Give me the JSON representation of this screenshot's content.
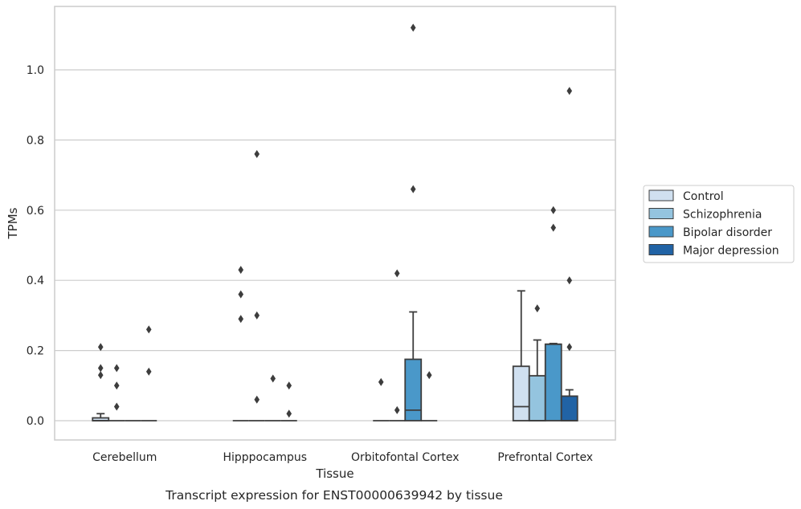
{
  "caption": "Transcript expression for ENST00000639942 by tissue",
  "colors": {
    "Control": "#d0e0f0",
    "Schizophrenia": "#94c4df",
    "Bipolar disorder": "#4a98c9",
    "Major depression": "#2163a5",
    "edge": "#3d3d3d",
    "grid": "#cccccc"
  },
  "chart_data": {
    "type": "box",
    "xlabel": "Tissue",
    "ylabel": "TPMs",
    "categories": [
      "Cerebellum",
      "Hipppocampus",
      "Orbitofontal Cortex",
      "Prefrontal Cortex"
    ],
    "yticks": [
      0.0,
      0.2,
      0.4,
      0.6,
      0.8,
      1.0
    ],
    "ytick_labels": [
      "0.0",
      "0.2",
      "0.4",
      "0.6",
      "0.8",
      "1.0"
    ],
    "ylim": [
      -0.055,
      1.18
    ],
    "grid": true,
    "legend": {
      "placement": "outside-right",
      "entries": [
        "Control",
        "Schizophrenia",
        "Bipolar disorder",
        "Major depression"
      ]
    },
    "series": [
      {
        "name": "Control",
        "boxes": [
          {
            "q1": 0,
            "median": 0,
            "q3": 0.008,
            "whisker_low": 0,
            "whisker_high": 0.02,
            "outliers": [
              0.13,
              0.15,
              0.21
            ]
          },
          {
            "q1": 0,
            "median": 0,
            "q3": 0,
            "whisker_low": 0,
            "whisker_high": 0,
            "outliers": [
              0.29,
              0.36,
              0.43
            ]
          },
          {
            "q1": 0,
            "median": 0,
            "q3": 0,
            "whisker_low": 0,
            "whisker_high": 0,
            "outliers": [
              0.11
            ]
          },
          {
            "q1": 0,
            "median": 0.04,
            "q3": 0.155,
            "whisker_low": 0,
            "whisker_high": 0.37,
            "outliers": []
          }
        ]
      },
      {
        "name": "Schizophrenia",
        "boxes": [
          {
            "q1": 0,
            "median": 0,
            "q3": 0,
            "whisker_low": 0,
            "whisker_high": 0,
            "outliers": [
              0.04,
              0.1,
              0.15
            ]
          },
          {
            "q1": 0,
            "median": 0,
            "q3": 0,
            "whisker_low": 0,
            "whisker_high": 0,
            "outliers": [
              0.06,
              0.3,
              0.76
            ]
          },
          {
            "q1": 0,
            "median": 0,
            "q3": 0,
            "whisker_low": 0,
            "whisker_high": 0,
            "outliers": [
              0.03,
              0.42
            ]
          },
          {
            "q1": 0,
            "median": 0,
            "q3": 0.128,
            "whisker_low": 0,
            "whisker_high": 0.23,
            "outliers": [
              0.32
            ]
          }
        ]
      },
      {
        "name": "Bipolar disorder",
        "boxes": [
          {
            "q1": 0,
            "median": 0,
            "q3": 0,
            "whisker_low": 0,
            "whisker_high": 0,
            "outliers": []
          },
          {
            "q1": 0,
            "median": 0,
            "q3": 0,
            "whisker_low": 0,
            "whisker_high": 0,
            "outliers": [
              0.12
            ]
          },
          {
            "q1": 0,
            "median": 0.03,
            "q3": 0.175,
            "whisker_low": 0,
            "whisker_high": 0.31,
            "outliers": [
              0.66,
              1.12
            ]
          },
          {
            "q1": 0,
            "median": 0.218,
            "q3": 0.218,
            "whisker_low": 0,
            "whisker_high": 0.22,
            "outliers": [
              0.55,
              0.6
            ]
          }
        ]
      },
      {
        "name": "Major depression",
        "boxes": [
          {
            "q1": 0,
            "median": 0,
            "q3": 0,
            "whisker_low": 0,
            "whisker_high": 0,
            "outliers": [
              0.14,
              0.26
            ]
          },
          {
            "q1": 0,
            "median": 0,
            "q3": 0,
            "whisker_low": 0,
            "whisker_high": 0,
            "outliers": [
              0.02,
              0.1
            ]
          },
          {
            "q1": 0,
            "median": 0,
            "q3": 0,
            "whisker_low": 0,
            "whisker_high": 0,
            "outliers": [
              0.13
            ]
          },
          {
            "q1": 0,
            "median": 0,
            "q3": 0.07,
            "whisker_low": 0,
            "whisker_high": 0.088,
            "outliers": [
              0.21,
              0.4,
              0.94
            ]
          }
        ]
      }
    ]
  }
}
